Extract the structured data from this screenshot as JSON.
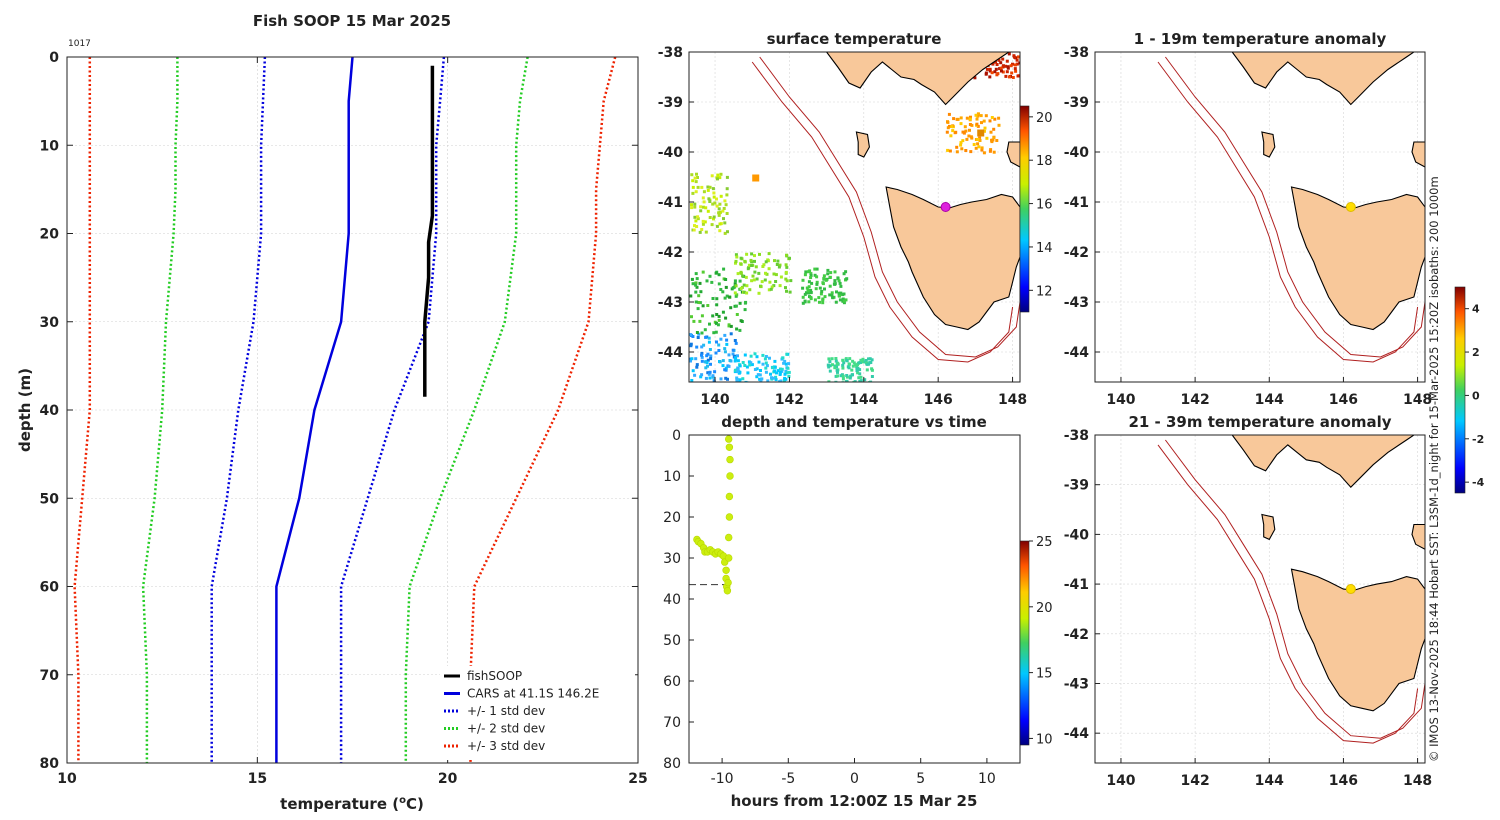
{
  "chart_data": [
    {
      "type": "line",
      "title": "Fish SOOP 15 Mar 2025",
      "id_label": "1017",
      "xlabel": "temperature (",
      "xlabel_unit": "o",
      "xlabel_end": "C)",
      "ylabel": "depth (m)",
      "xlim": [
        10,
        25
      ],
      "ylim": [
        0,
        80
      ],
      "xticks": [
        "10",
        "15",
        "20",
        "25"
      ],
      "yticks": [
        "0",
        "10",
        "20",
        "30",
        "40",
        "50",
        "60",
        "70",
        "80"
      ],
      "grid": true,
      "legend_position": "bottom-right",
      "series": [
        {
          "name": "fishSOOP",
          "color": "#000000",
          "style": "solid",
          "points": [
            [
              19.6,
              1
            ],
            [
              19.6,
              5
            ],
            [
              19.6,
              10
            ],
            [
              19.6,
              15
            ],
            [
              19.6,
              18
            ],
            [
              19.5,
              21
            ],
            [
              19.5,
              25
            ],
            [
              19.4,
              30
            ],
            [
              19.4,
              35
            ],
            [
              19.4,
              38.5
            ]
          ]
        },
        {
          "name": "CARS at 41.1S 146.2E",
          "color": "#0000dd",
          "style": "solid",
          "points": [
            [
              17.5,
              0
            ],
            [
              17.4,
              5
            ],
            [
              17.4,
              10
            ],
            [
              17.4,
              15
            ],
            [
              17.4,
              20
            ],
            [
              17.2,
              30
            ],
            [
              16.5,
              40
            ],
            [
              16.1,
              50
            ],
            [
              15.5,
              60
            ],
            [
              15.5,
              70
            ],
            [
              15.5,
              80
            ]
          ]
        },
        {
          "name": "+/- 1 std dev",
          "color": "#0000dd",
          "style": "dotted",
          "points": [
            [
              15.2,
              0
            ],
            [
              15.15,
              5
            ],
            [
              15.1,
              10
            ],
            [
              15.1,
              15
            ],
            [
              15.1,
              20
            ],
            [
              14.9,
              30
            ],
            [
              14.5,
              40
            ],
            [
              14.2,
              50
            ],
            [
              13.8,
              60
            ],
            [
              13.8,
              70
            ],
            [
              13.8,
              80
            ]
          ],
          "points_upper": [
            [
              19.9,
              0
            ],
            [
              19.8,
              5
            ],
            [
              19.7,
              10
            ],
            [
              19.7,
              15
            ],
            [
              19.7,
              20
            ],
            [
              19.5,
              30
            ],
            [
              18.6,
              40
            ],
            [
              17.9,
              50
            ],
            [
              17.2,
              60
            ],
            [
              17.2,
              70
            ],
            [
              17.2,
              80
            ]
          ]
        },
        {
          "name": "+/- 2 std dev",
          "color": "#22cc22",
          "style": "dotted",
          "points": [
            [
              12.9,
              0
            ],
            [
              12.9,
              5
            ],
            [
              12.85,
              10
            ],
            [
              12.85,
              15
            ],
            [
              12.8,
              20
            ],
            [
              12.6,
              30
            ],
            [
              12.5,
              40
            ],
            [
              12.3,
              50
            ],
            [
              12.0,
              60
            ],
            [
              12.1,
              70
            ],
            [
              12.1,
              80
            ]
          ],
          "points_upper": [
            [
              22.1,
              0
            ],
            [
              21.9,
              5
            ],
            [
              21.8,
              10
            ],
            [
              21.8,
              15
            ],
            [
              21.8,
              20
            ],
            [
              21.5,
              30
            ],
            [
              20.7,
              40
            ],
            [
              19.8,
              50
            ],
            [
              19.0,
              60
            ],
            [
              18.9,
              70
            ],
            [
              18.9,
              80
            ]
          ]
        },
        {
          "name": "+/- 3 std dev",
          "color": "#ee2200",
          "style": "dotted",
          "points": [
            [
              10.6,
              0
            ],
            [
              10.6,
              5
            ],
            [
              10.6,
              10
            ],
            [
              10.6,
              15
            ],
            [
              10.6,
              20
            ],
            [
              10.6,
              30
            ],
            [
              10.6,
              40
            ],
            [
              10.4,
              50
            ],
            [
              10.2,
              60
            ],
            [
              10.3,
              70
            ],
            [
              10.3,
              80
            ]
          ],
          "points_upper": [
            [
              24.4,
              0
            ],
            [
              24.1,
              5
            ],
            [
              24.0,
              10
            ],
            [
              23.9,
              15
            ],
            [
              23.9,
              20
            ],
            [
              23.7,
              30
            ],
            [
              22.9,
              40
            ],
            [
              21.8,
              50
            ],
            [
              20.7,
              60
            ],
            [
              20.6,
              70
            ],
            [
              20.6,
              80
            ]
          ]
        }
      ]
    },
    {
      "type": "heatmap",
      "title": "surface temperature",
      "xlim": [
        139.3,
        148.2
      ],
      "ylim": [
        -44.6,
        -38
      ],
      "xticks": [
        "140",
        "142",
        "144",
        "146",
        "148"
      ],
      "yticks": [
        "-38",
        "-39",
        "-40",
        "-41",
        "-42",
        "-43",
        "-44"
      ],
      "colorbar": {
        "ticks": [
          "12",
          "14",
          "16",
          "18",
          "20"
        ],
        "range": [
          11,
          20.5
        ]
      },
      "marker": {
        "lon": 146.2,
        "lat": -41.1,
        "color": "#dd22dd"
      },
      "isobaths_m": [
        200,
        1000
      ]
    },
    {
      "type": "scatter",
      "title": "depth and temperature vs time",
      "xlabel": "hours from 12:00Z 15 Mar 25",
      "xlim": [
        -12.5,
        12.5
      ],
      "ylim": [
        0,
        80
      ],
      "xticks": [
        "-10",
        "-5",
        "0",
        "5",
        "10"
      ],
      "yticks": [
        "0",
        "10",
        "20",
        "30",
        "40",
        "50",
        "60",
        "70",
        "80"
      ],
      "colorbar": {
        "ticks": [
          "10",
          "15",
          "20",
          "25"
        ],
        "range": [
          9.5,
          25
        ]
      },
      "dashed_depth": 36.5,
      "points": [
        [
          -11.9,
          25.5
        ],
        [
          -11.8,
          26
        ],
        [
          -11.6,
          26.5
        ],
        [
          -11.4,
          27.5
        ],
        [
          -11.3,
          28.5
        ],
        [
          -11.1,
          28.5
        ],
        [
          -10.9,
          28
        ],
        [
          -10.7,
          28.5
        ],
        [
          -10.5,
          29
        ],
        [
          -10.3,
          28.5
        ],
        [
          -10.1,
          29
        ],
        [
          -9.9,
          29.5
        ],
        [
          -9.8,
          31
        ],
        [
          -9.7,
          33
        ],
        [
          -9.7,
          35
        ],
        [
          -9.65,
          37
        ],
        [
          -9.6,
          38
        ],
        [
          -9.55,
          36
        ],
        [
          -9.5,
          30
        ],
        [
          -9.5,
          25
        ],
        [
          -9.45,
          20
        ],
        [
          -9.45,
          15
        ],
        [
          -9.4,
          10
        ],
        [
          -9.4,
          6
        ],
        [
          -9.45,
          3
        ],
        [
          -9.5,
          1
        ]
      ]
    },
    {
      "type": "heatmap",
      "title": "1 - 19m temperature anomaly",
      "xlim": [
        139.3,
        148.2
      ],
      "ylim": [
        -44.6,
        -38
      ],
      "xticks": [
        "140",
        "142",
        "144",
        "146",
        "148"
      ],
      "yticks": [
        "-38",
        "-39",
        "-40",
        "-41",
        "-42",
        "-43",
        "-44"
      ],
      "marker": {
        "lon": 146.2,
        "lat": -41.1,
        "color": "#ffdd00"
      }
    },
    {
      "type": "heatmap",
      "title": "21 - 39m temperature anomaly",
      "xlim": [
        139.3,
        148.2
      ],
      "ylim": [
        -44.6,
        -38
      ],
      "xticks": [
        "140",
        "142",
        "144",
        "146",
        "148"
      ],
      "yticks": [
        "-38",
        "-39",
        "-40",
        "-41",
        "-42",
        "-43",
        "-44"
      ],
      "marker": {
        "lon": 146.2,
        "lat": -41.1,
        "color": "#ffdd00"
      },
      "colorbar": {
        "ticks": [
          "4",
          "2",
          "0",
          "-2",
          "-4"
        ],
        "range": [
          -4.5,
          5
        ]
      }
    }
  ],
  "credit": "© IMOS 13-Nov-2025 18:44 Hobart SST: L3SM-1d_night for 15-Mar-2025 15:20Z isobaths: 200  1000m",
  "colors": {
    "land": "#f8c89a",
    "coast": "#000000",
    "isobath": "#b02020"
  }
}
